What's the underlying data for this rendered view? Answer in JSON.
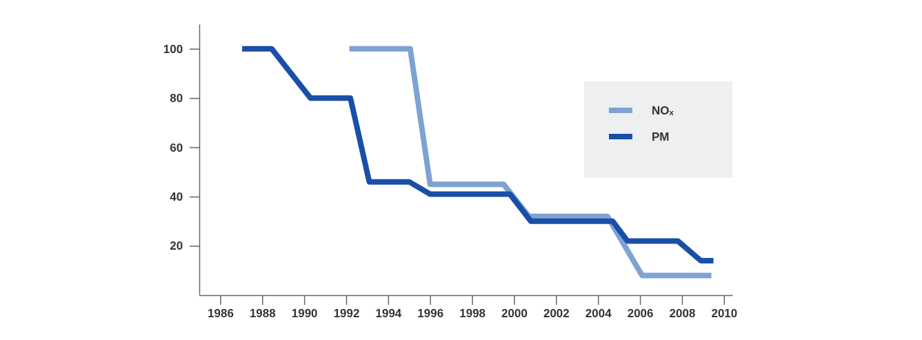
{
  "chart_data": {
    "type": "step",
    "xlim": [
      1985,
      2010.4
    ],
    "ylim": [
      0,
      110
    ],
    "xticks": [
      1986,
      1988,
      1990,
      1992,
      1994,
      1996,
      1998,
      2000,
      2002,
      2004,
      2006,
      2008,
      2010
    ],
    "yticks": [
      20,
      40,
      60,
      80,
      100
    ],
    "legend": "top right",
    "grid": false,
    "series": [
      {
        "name": "NOₓ",
        "color": "#7ea3d3",
        "x": [
          1992.15,
          1995.05,
          1996.0,
          1999.5,
          2000.7,
          2004.45,
          2006.1,
          2009.4
        ],
        "values": [
          100,
          100,
          45,
          45,
          32,
          32,
          8,
          8
        ]
      },
      {
        "name": "PM",
        "color": "#1a4fa8",
        "x": [
          1987.04,
          1988.45,
          1990.3,
          1992.2,
          1993.1,
          1995.0,
          1996.0,
          1999.8,
          2000.8,
          2004.7,
          2005.4,
          2007.8,
          2008.9,
          2009.5
        ],
        "values": [
          100,
          100,
          80,
          80,
          46,
          46,
          41,
          41,
          30,
          30,
          22,
          22,
          14,
          14
        ]
      }
    ]
  }
}
